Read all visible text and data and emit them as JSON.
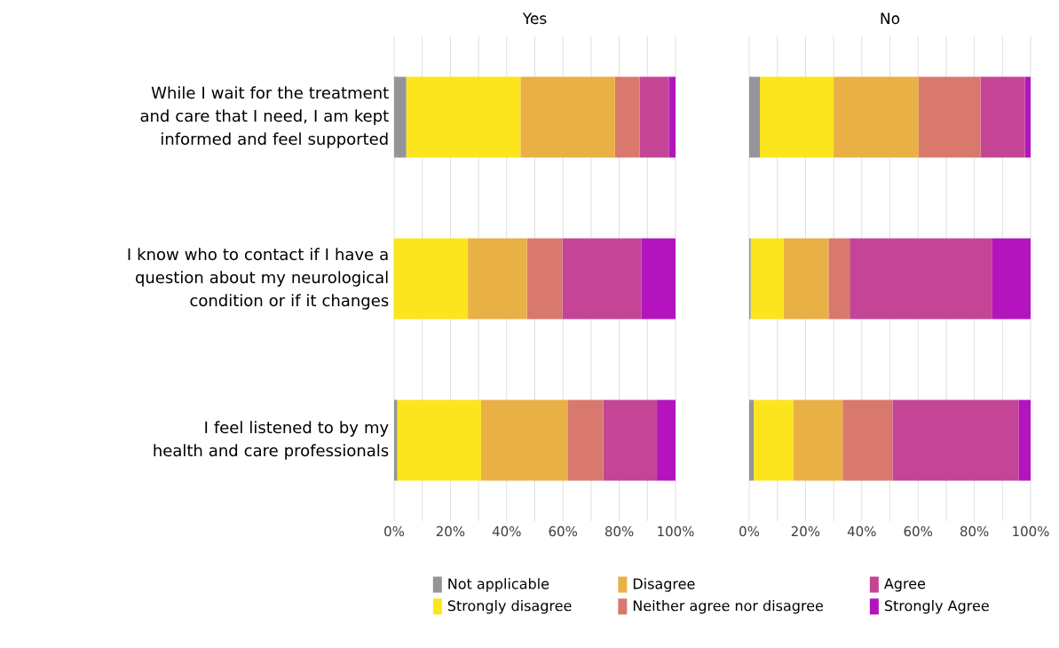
{
  "chart_data": [
    {
      "type": "bar",
      "orientation": "horizontal",
      "stacked": true,
      "title": "Yes",
      "categories": [
        "While I wait for the treatment and care that I need, I am kept informed and feel supported",
        "I know who to contact if I have a question about my neurological condition or if it changes",
        "I feel listened to by my health and care professionals"
      ],
      "series": [
        {
          "name": "Not applicable",
          "color": "#939598",
          "values": [
            4.3,
            0,
            1.1
          ]
        },
        {
          "name": "Strongly disagree",
          "color": "#fce51c",
          "values": [
            40.6,
            26.2,
            29.8
          ]
        },
        {
          "name": "Disagree",
          "color": "#e9b045",
          "values": [
            33.6,
            21.0,
            30.7
          ]
        },
        {
          "name": "Neither agree nor disagree",
          "color": "#d9796e",
          "values": [
            8.8,
            12.6,
            12.7
          ]
        },
        {
          "name": "Agree",
          "color": "#c44596",
          "values": [
            10.3,
            28.0,
            19.1
          ]
        },
        {
          "name": "Strongly Agree",
          "color": "#b414bd",
          "values": [
            2.4,
            12.2,
            6.6
          ]
        }
      ],
      "xlim": [
        0,
        100
      ],
      "xticks": [
        {
          "value": 0,
          "label": "0%"
        },
        {
          "value": 10,
          "label": null
        },
        {
          "value": 20,
          "label": "20%"
        },
        {
          "value": 30,
          "label": null
        },
        {
          "value": 40,
          "label": "40%"
        },
        {
          "value": 50,
          "label": null
        },
        {
          "value": 60,
          "label": "60%"
        },
        {
          "value": 70,
          "label": null
        },
        {
          "value": 80,
          "label": "80%"
        },
        {
          "value": 90,
          "label": null
        },
        {
          "value": 100,
          "label": "100%"
        }
      ],
      "grid": "x",
      "legend": "bottom"
    },
    {
      "type": "bar",
      "orientation": "horizontal",
      "stacked": true,
      "title": "No",
      "categories": [
        null,
        null,
        null
      ],
      "series": [
        {
          "color": "#939598",
          "values": [
            3.8,
            0.5,
            1.6
          ]
        },
        {
          "color": "#fce51c",
          "values": [
            26.2,
            11.7,
            14.0
          ]
        },
        {
          "color": "#e9b045",
          "values": [
            30.2,
            16.0,
            17.6
          ]
        },
        {
          "color": "#d9796e",
          "values": [
            22.0,
            7.5,
            17.7
          ]
        },
        {
          "color": "#c44596",
          "values": [
            15.8,
            50.7,
            44.8
          ]
        },
        {
          "color": "#b414bd",
          "values": [
            2.0,
            13.6,
            4.3
          ]
        }
      ],
      "xlim": [
        0,
        100
      ],
      "xticks": [
        {
          "value": 0,
          "label": "0%"
        },
        {
          "value": 10,
          "label": null
        },
        {
          "value": 20,
          "label": "20%"
        },
        {
          "value": 30,
          "label": null
        },
        {
          "value": 40,
          "label": "40%"
        },
        {
          "value": 50,
          "label": null
        },
        {
          "value": 60,
          "label": "60%"
        },
        {
          "value": 70,
          "label": null
        },
        {
          "value": 80,
          "label": "80%"
        },
        {
          "value": 90,
          "label": null
        },
        {
          "value": 100,
          "label": "100%"
        }
      ],
      "grid": "x",
      "tick_labels": "x"
    }
  ]
}
